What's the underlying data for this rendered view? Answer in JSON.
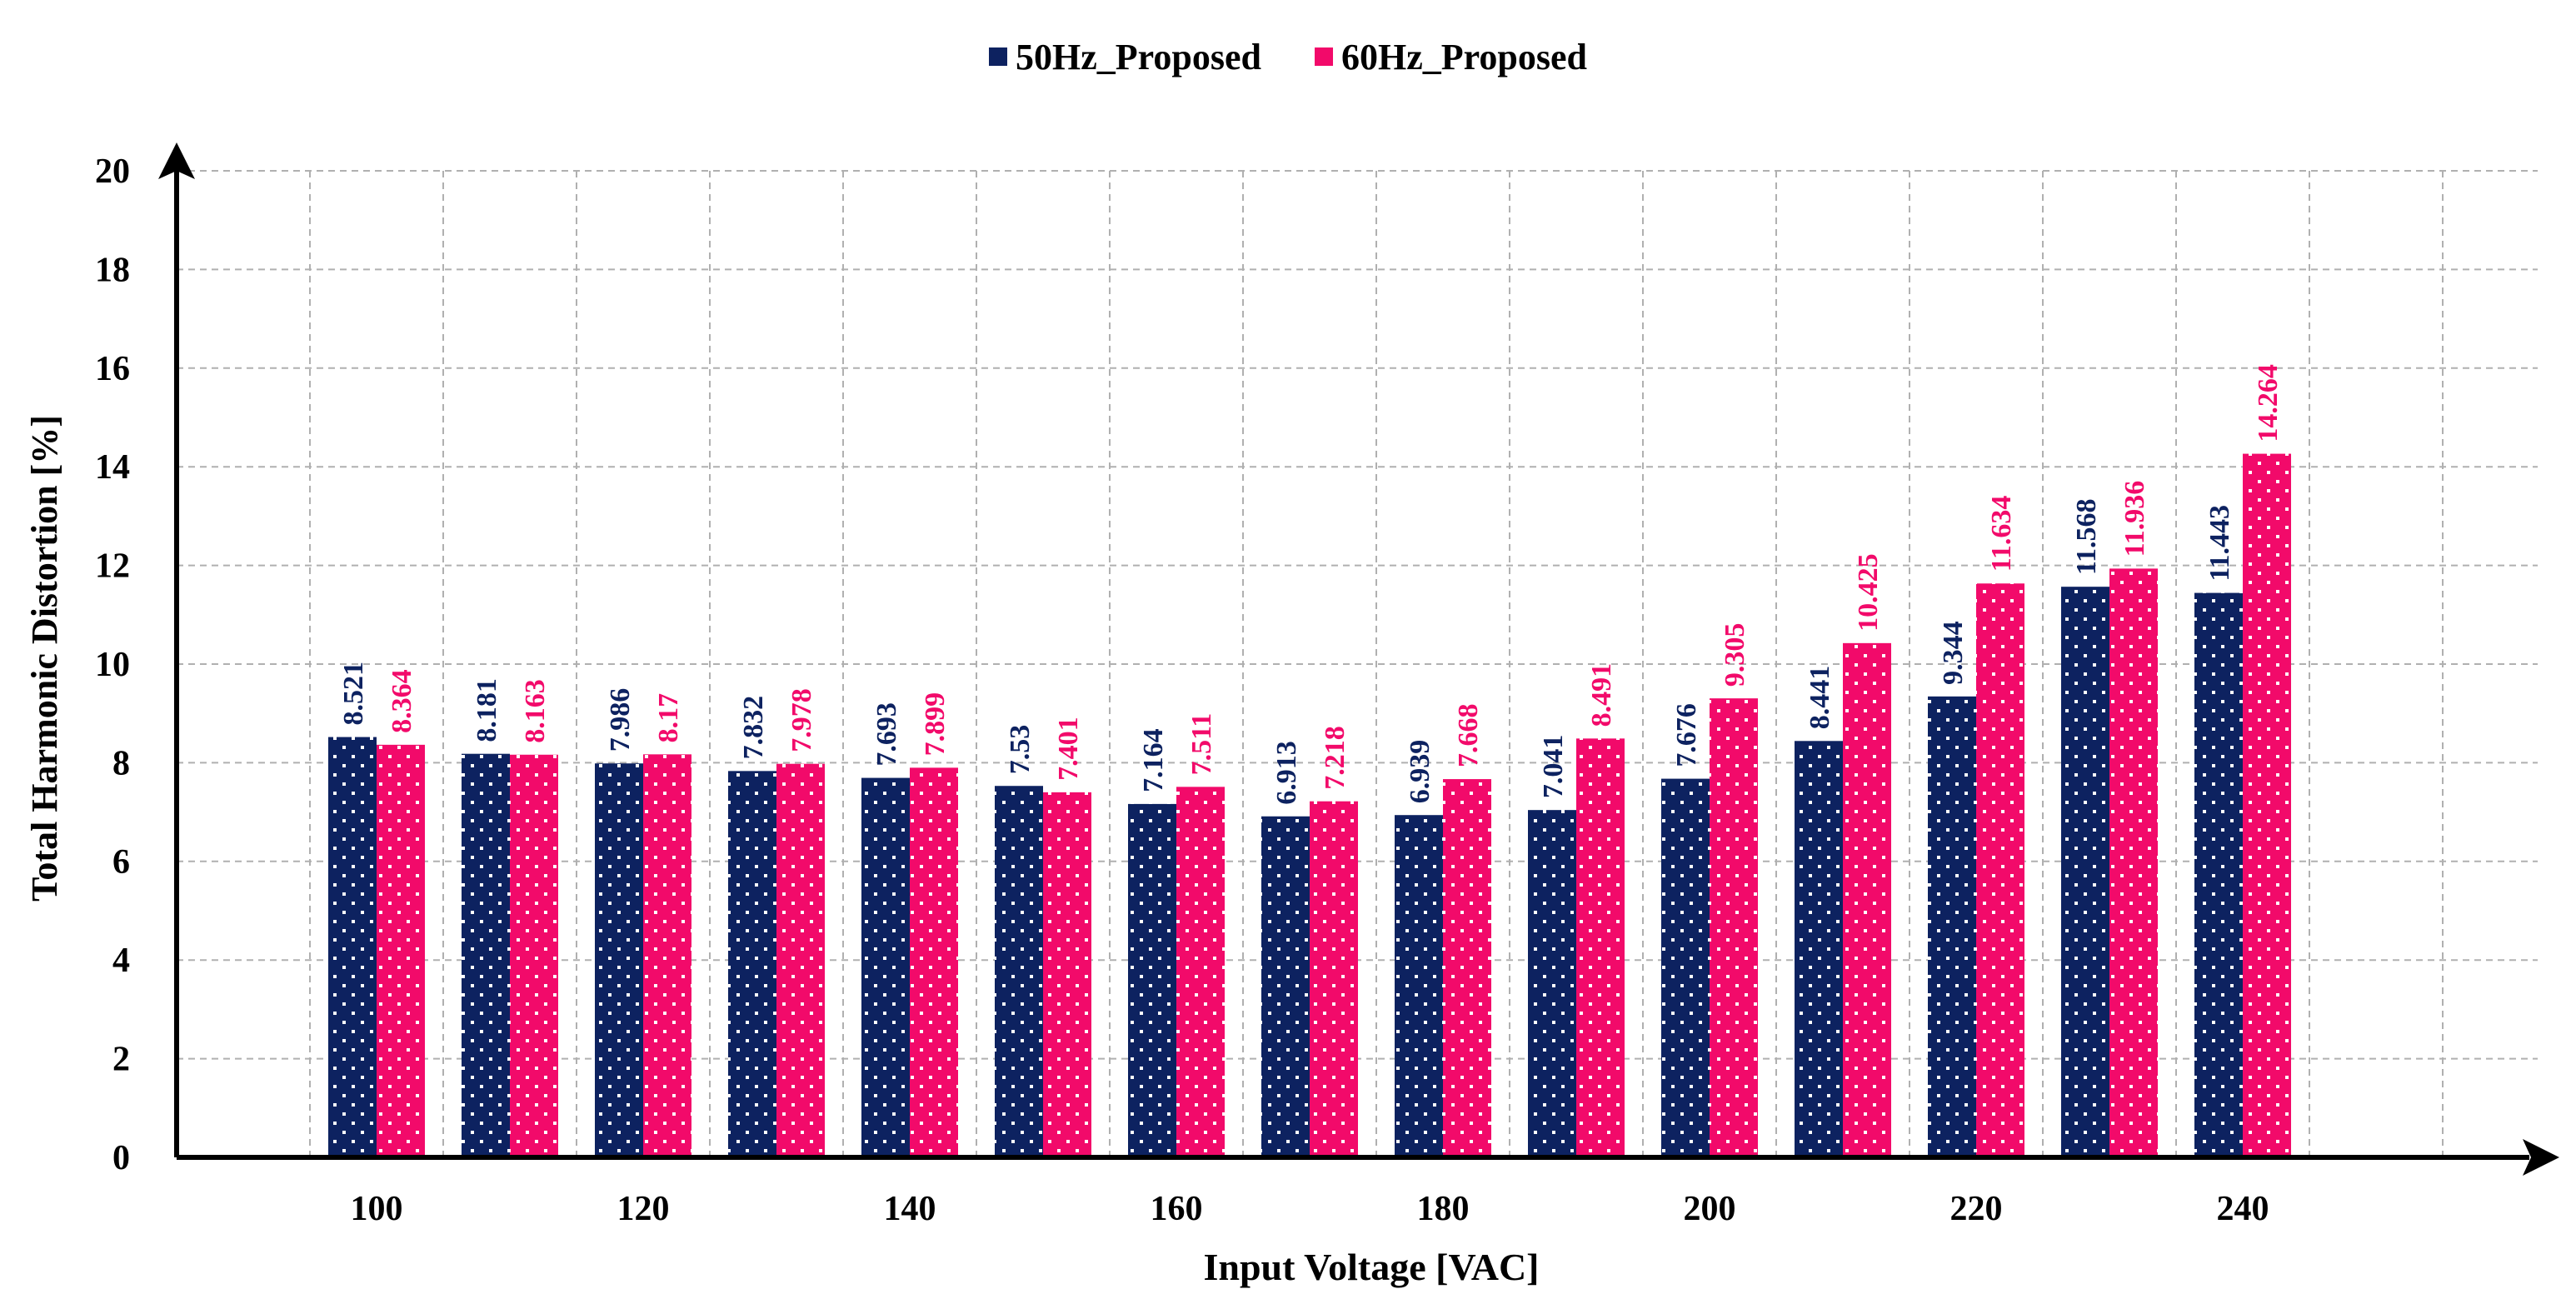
{
  "chart_data": {
    "type": "bar",
    "title": "",
    "xlabel": "Input Voltage [VAC]",
    "ylabel": "Total Harmonic Distortion [%]",
    "ylim": [
      0,
      20
    ],
    "yticks": [
      0,
      2,
      4,
      6,
      8,
      10,
      12,
      14,
      16,
      18,
      20
    ],
    "grid": true,
    "legend_position": "top-center",
    "categories": [
      "100",
      "110",
      "120",
      "130",
      "140",
      "150",
      "160",
      "170",
      "180",
      "190",
      "200",
      "210",
      "220",
      "230",
      "240"
    ],
    "xtick_labels": [
      "100",
      "",
      "120",
      "",
      "140",
      "",
      "160",
      "",
      "180",
      "",
      "200",
      "",
      "220",
      "",
      "240"
    ],
    "series": [
      {
        "name": "50Hz_Proposed",
        "color": "#0d2260",
        "values": [
          8.521,
          8.181,
          7.986,
          7.832,
          7.693,
          7.53,
          7.164,
          6.913,
          6.939,
          7.041,
          7.676,
          8.441,
          9.344,
          11.568,
          11.443
        ],
        "labels": [
          "8.521",
          "8.181",
          "7.986",
          "7.832",
          "7.693",
          "7.53",
          "7.164",
          "6.913",
          "6.939",
          "7.041",
          "7.676",
          "8.441",
          "9.344",
          "11.568",
          "11.443"
        ]
      },
      {
        "name": "60Hz_Proposed",
        "color": "#f20a6a",
        "values": [
          8.364,
          8.163,
          8.17,
          7.978,
          7.899,
          7.401,
          7.511,
          7.218,
          7.668,
          8.491,
          9.305,
          10.425,
          11.634,
          11.936,
          14.264
        ],
        "labels": [
          "8.364",
          "8.163",
          "8.17",
          "7.978",
          "7.899",
          "7.401",
          "7.511",
          "7.218",
          "7.668",
          "8.491",
          "9.305",
          "10.425",
          "11.634",
          "11.936",
          "14.264"
        ]
      }
    ]
  }
}
